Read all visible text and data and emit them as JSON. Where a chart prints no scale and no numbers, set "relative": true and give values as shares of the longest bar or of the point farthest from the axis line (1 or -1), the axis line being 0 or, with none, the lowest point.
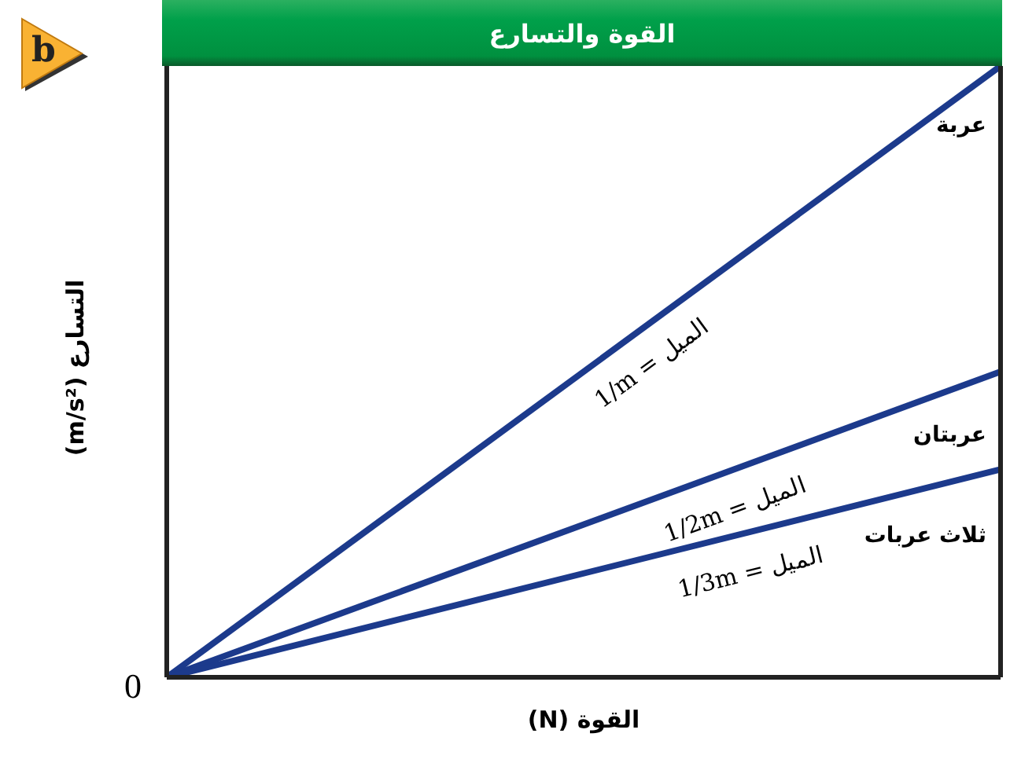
{
  "chart_data": {
    "type": "line",
    "title": "القوة والتسارع",
    "xlabel": "القوة (N)",
    "ylabel": "التسارع (m/s²)",
    "relative": true,
    "categories": [
      null,
      null
    ],
    "series": [
      {
        "name": "عربة",
        "color": "#1c3a8c",
        "values": [
          0,
          1
        ]
      },
      {
        "name": "عربتان",
        "color": "#1c3a8c",
        "values": [
          0,
          0.5
        ]
      },
      {
        "name": "ثلاث عربات",
        "color": "#1c3a8c",
        "values": [
          0,
          0.34
        ]
      }
    ],
    "annotations": [
      "b",
      "0",
      "الميل = 1/m",
      "الميل = 1/2m",
      "الميل = 1/3m"
    ],
    "marker": "none",
    "line_style": "solid"
  }
}
